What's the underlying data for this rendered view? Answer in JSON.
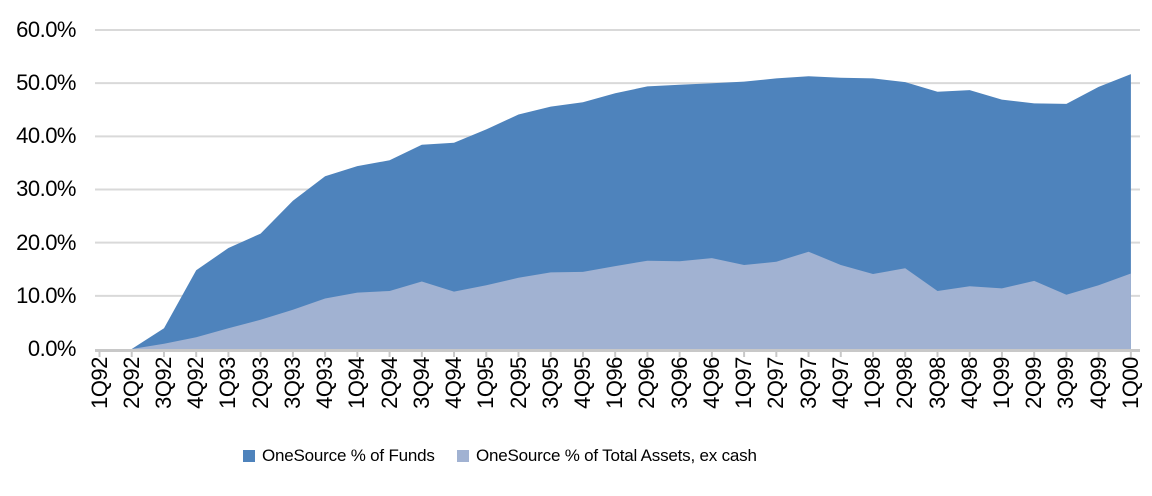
{
  "chart_data": {
    "type": "area",
    "overlapping": true,
    "title": "",
    "xlabel": "",
    "ylabel": "",
    "ylim": [
      0,
      60
    ],
    "ytick_step": 10,
    "y_tick_labels": [
      "60.0%",
      "50.0%",
      "40.0%",
      "30.0%",
      "20.0%",
      "10.0%",
      "0.0%"
    ],
    "grid": true,
    "legend_position": "bottom",
    "categories": [
      "1Q92",
      "2Q92",
      "3Q92",
      "4Q92",
      "1Q93",
      "2Q93",
      "3Q93",
      "4Q93",
      "1Q94",
      "2Q94",
      "3Q94",
      "4Q94",
      "1Q95",
      "2Q95",
      "3Q95",
      "4Q95",
      "1Q96",
      "2Q96",
      "3Q96",
      "4Q96",
      "1Q97",
      "2Q97",
      "3Q97",
      "4Q97",
      "1Q98",
      "2Q98",
      "3Q98",
      "4Q98",
      "1Q99",
      "2Q99",
      "3Q99",
      "4Q99",
      "1Q00"
    ],
    "series": [
      {
        "name": "OneSource % of Funds",
        "color": "#4E83BC",
        "values": [
          0,
          0,
          3.9,
          14.8,
          19.0,
          21.7,
          27.9,
          32.5,
          34.4,
          35.5,
          38.4,
          38.8,
          41.3,
          44.1,
          45.6,
          46.4,
          48.1,
          49.4,
          49.7,
          50.0,
          50.3,
          50.9,
          51.3,
          51.0,
          50.9,
          50.2,
          48.4,
          48.7,
          46.9,
          46.2,
          46.1,
          49.3,
          51.7
        ]
      },
      {
        "name": "OneSource % of Total Assets, ex cash",
        "color": "#A1B2D2",
        "values": [
          0,
          0,
          1.0,
          2.2,
          3.9,
          5.5,
          7.4,
          9.5,
          10.6,
          10.9,
          12.7,
          10.8,
          12.0,
          13.4,
          14.4,
          14.5,
          15.6,
          16.6,
          16.5,
          17.1,
          15.8,
          16.4,
          18.3,
          15.8,
          14.1,
          15.2,
          10.9,
          11.8,
          11.4,
          12.8,
          10.2,
          12.0,
          14.2
        ]
      }
    ],
    "gridline_color": "#D9D9D9",
    "axis_line_color": "#C8C8C8"
  }
}
